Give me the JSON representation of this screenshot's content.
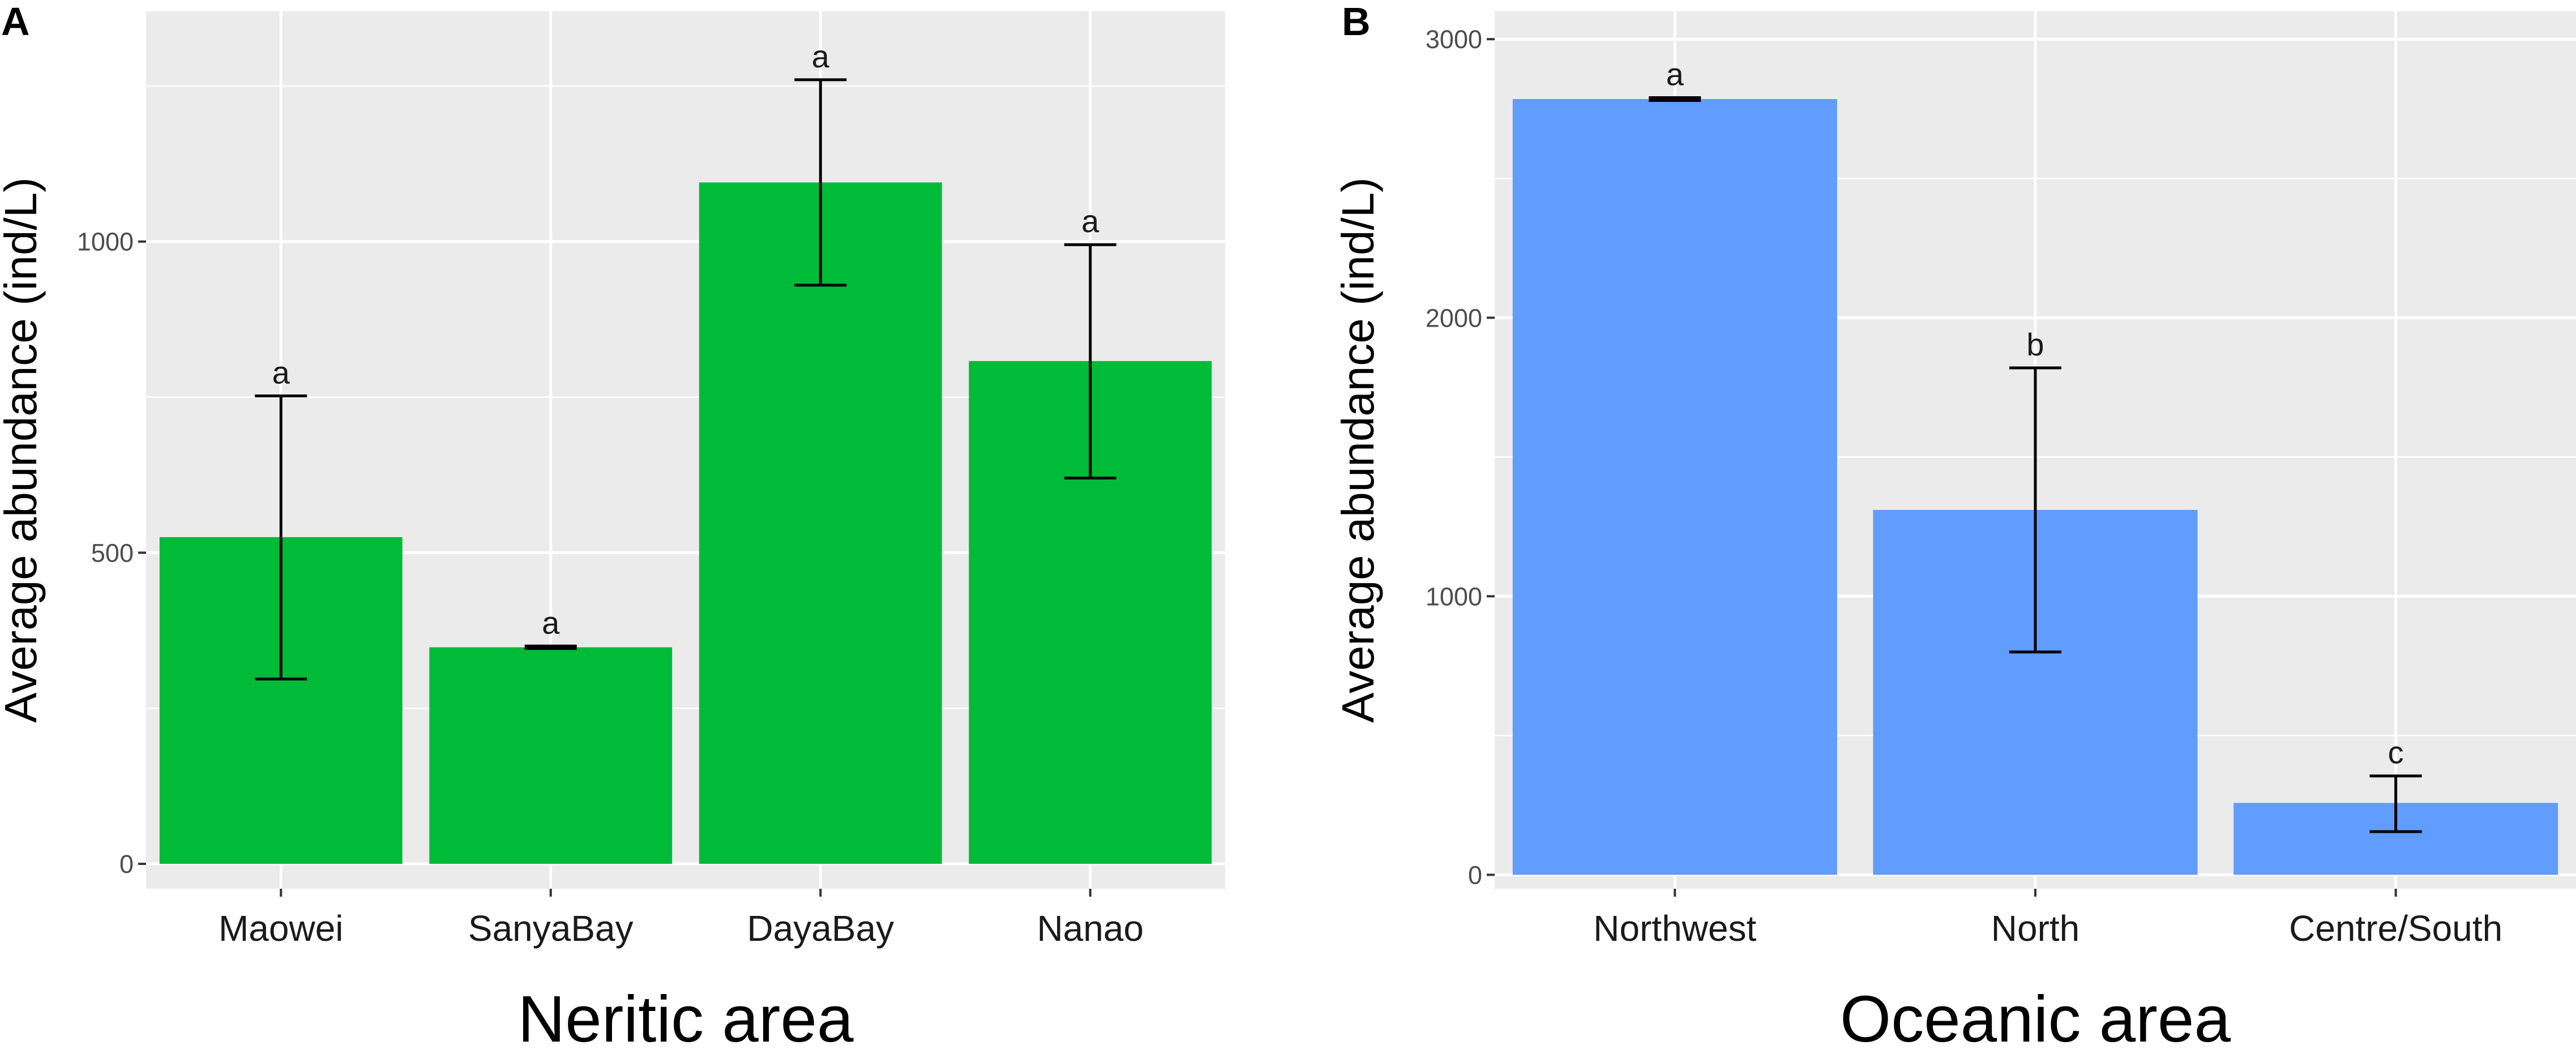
{
  "chart_data": [
    {
      "panel": "A",
      "type": "bar",
      "categories": [
        "Maowei",
        "SanyaBay",
        "DayaBay",
        "Nanao"
      ],
      "values": [
        525,
        348,
        1095,
        808
      ],
      "error_low": [
        297,
        346,
        930,
        620
      ],
      "error_high": [
        752,
        350,
        1260,
        995
      ],
      "significance": [
        "a",
        "a",
        "a",
        "a"
      ],
      "ylabel": "Average abundance (ind/L)",
      "xlabel": "Neritic area",
      "ylim": [
        -40,
        1370
      ],
      "yticks": [
        0,
        500,
        1000
      ],
      "ytick_labels": [
        "0",
        "500",
        "1000"
      ],
      "color": "#00bb38"
    },
    {
      "panel": "B",
      "type": "bar",
      "categories": [
        "Northwest",
        "North",
        "Centre/South"
      ],
      "values": [
        2785,
        1310,
        258
      ],
      "error_low": [
        2780,
        800,
        155
      ],
      "error_high": [
        2790,
        1820,
        355
      ],
      "significance": [
        "a",
        "b",
        "c"
      ],
      "ylabel": "Average abundance (ind/L)",
      "xlabel": "Oceanic area",
      "ylim": [
        -50,
        3100
      ],
      "yticks": [
        0,
        1000,
        2000,
        3000
      ],
      "ytick_labels": [
        "0",
        "1000",
        "2000",
        "3000"
      ],
      "color": "#619cff"
    }
  ]
}
